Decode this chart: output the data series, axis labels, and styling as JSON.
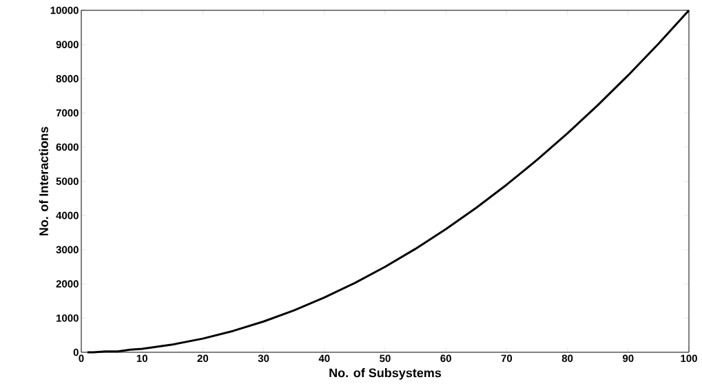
{
  "chart_data": {
    "type": "line",
    "xlabel": "No. of Subsystems",
    "ylabel": "No. of Interactions",
    "x": [
      1,
      2,
      4,
      6,
      8,
      10,
      15,
      20,
      25,
      30,
      35,
      40,
      45,
      50,
      55,
      60,
      65,
      70,
      75,
      80,
      85,
      90,
      95,
      100
    ],
    "series": [
      {
        "color": "#000000",
        "values": [
          0,
          0,
          25,
          25,
          75,
          100,
          225,
          400,
          625,
          900,
          1225,
          1600,
          2025,
          2500,
          3025,
          3600,
          4225,
          4900,
          5625,
          6400,
          7225,
          8100,
          9025,
          10000
        ]
      }
    ],
    "xlim": [
      0,
      100
    ],
    "ylim": [
      0,
      10000
    ],
    "xticks": [
      0,
      10,
      20,
      30,
      40,
      50,
      60,
      70,
      80,
      90,
      100
    ],
    "yticks": [
      0,
      1000,
      2000,
      3000,
      4000,
      5000,
      6000,
      7000,
      8000,
      9000,
      10000
    ],
    "line_style": "solid"
  }
}
